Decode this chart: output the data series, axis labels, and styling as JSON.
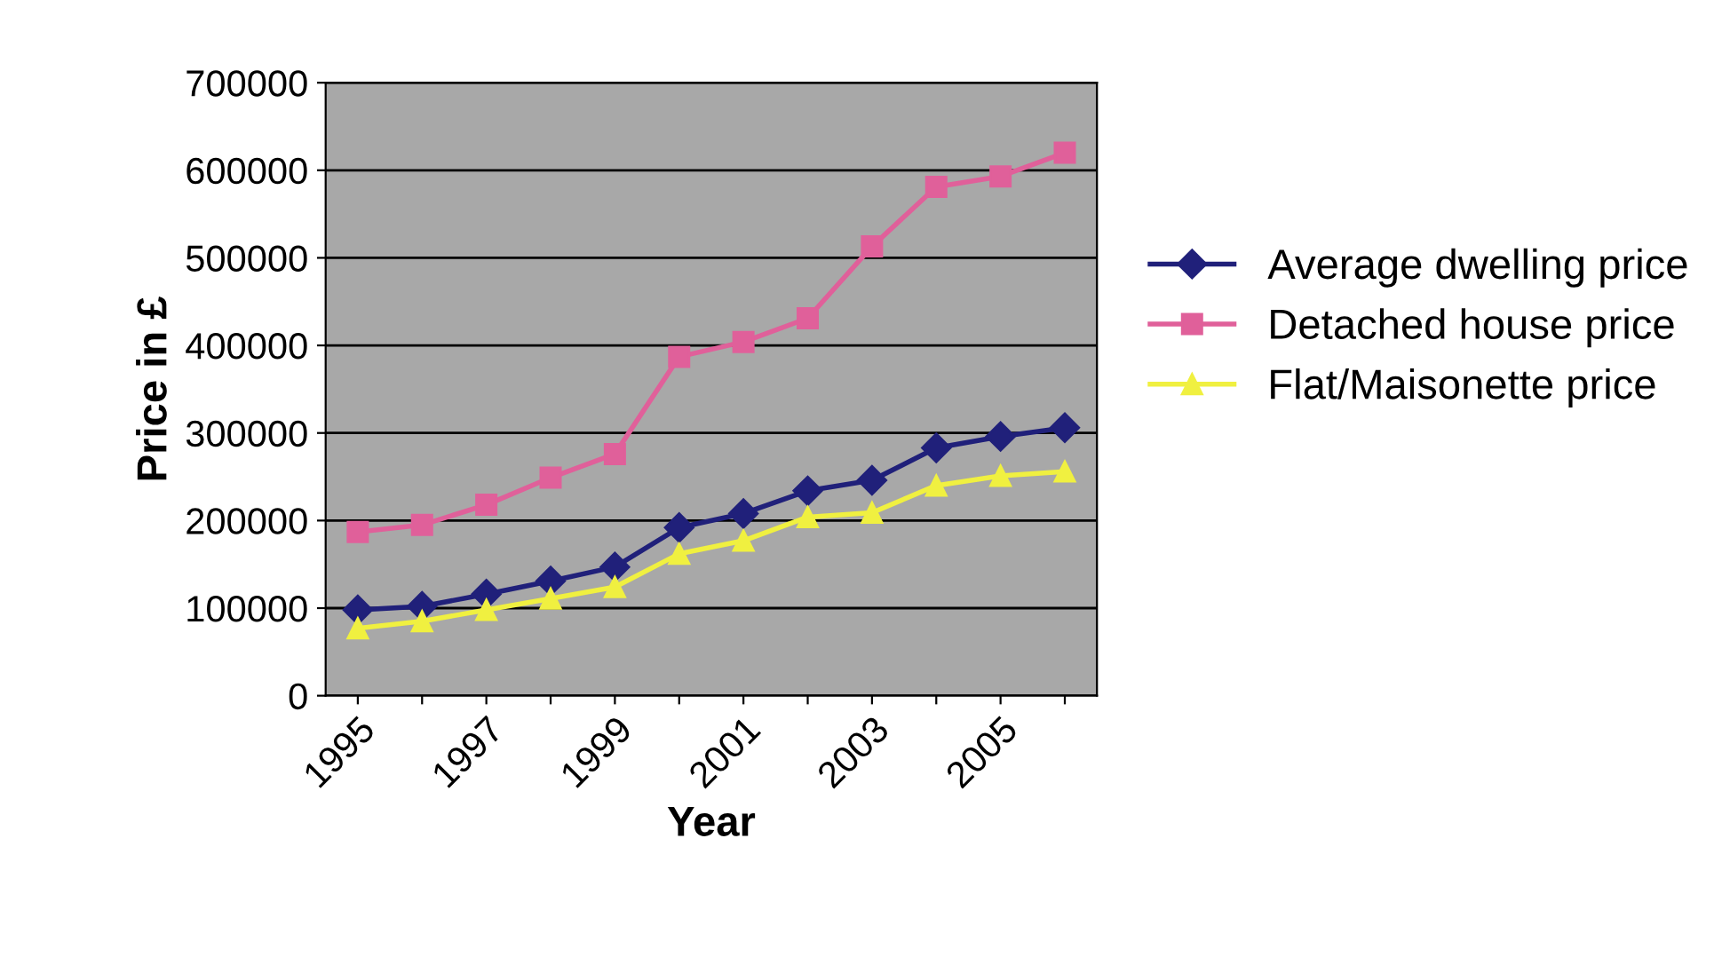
{
  "chart_data": {
    "type": "line",
    "xlabel": "Year",
    "ylabel": "Price in £",
    "categories": [
      "1995",
      null,
      "1997",
      null,
      "1999",
      null,
      "2001",
      null,
      "2003",
      null,
      "2005",
      null
    ],
    "series": [
      {
        "name": "Average dwelling price",
        "color": "#20207a",
        "marker": "diamond",
        "values": [
          98000,
          102000,
          116000,
          131000,
          147000,
          192000,
          208000,
          234000,
          246000,
          283000,
          296000,
          306000
        ]
      },
      {
        "name": "Detached house price",
        "color": "#e0609a",
        "marker": "square",
        "values": [
          187000,
          195000,
          218000,
          249000,
          276000,
          387000,
          404000,
          431000,
          513000,
          581000,
          593000,
          620000
        ]
      },
      {
        "name": "Flat/Maisonette price",
        "color": "#f0f040",
        "marker": "triangle",
        "values": [
          77000,
          85000,
          98000,
          111000,
          124000,
          162000,
          177000,
          204000,
          209000,
          240000,
          251000,
          256000
        ]
      }
    ],
    "ylim": [
      0,
      700000
    ],
    "yticks": [
      0,
      100000,
      200000,
      300000,
      400000,
      500000,
      600000,
      700000
    ],
    "grid": "y",
    "legend": "right",
    "line_style": "solid"
  }
}
